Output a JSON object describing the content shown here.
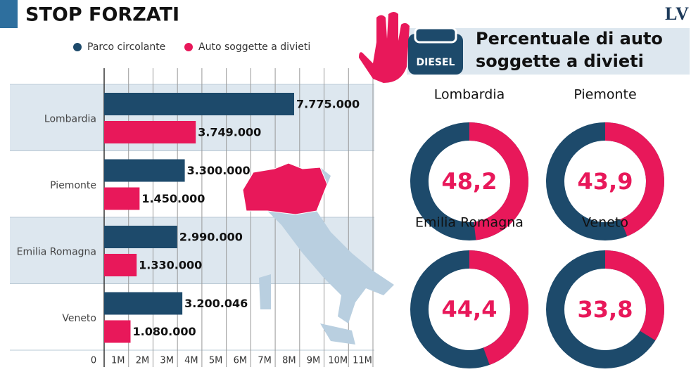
{
  "logo": "LV",
  "badge": "DIESEL",
  "chart_data": [
    {
      "type": "hbar",
      "title": "STOP FORZATI",
      "categories": [
        "Lombardia",
        "Piemonte",
        "Emilia Romagna",
        "Veneto"
      ],
      "series": [
        {
          "name": "Parco circolante",
          "color": "#1d4a6b",
          "values": [
            7775000,
            3300000,
            2990000,
            3200046
          ],
          "value_labels": [
            "7.775.000",
            "3.300.000",
            "2.990.000",
            "3.200.046"
          ]
        },
        {
          "name": "Auto soggette a divieti",
          "color": "#e8185a",
          "values": [
            3749000,
            1450000,
            1330000,
            1080000
          ],
          "value_labels": [
            "3.749.000",
            "1.450.000",
            "1.330.000",
            "1.080.000"
          ]
        }
      ],
      "xlim": [
        0,
        11000000
      ],
      "xticks": [
        0,
        {
          "value": 1000000,
          "label": "1M"
        },
        {
          "value": 2000000,
          "label": "2M"
        },
        {
          "value": 3000000,
          "label": "3M"
        },
        {
          "value": 4000000,
          "label": "4M"
        },
        {
          "value": 5000000,
          "label": "5M"
        },
        {
          "value": 6000000,
          "label": "6M"
        },
        {
          "value": 7000000,
          "label": "7M"
        },
        {
          "value": 8000000,
          "label": "8M"
        },
        {
          "value": 9000000,
          "label": "9M"
        },
        {
          "value": 10000000,
          "label": "10M"
        },
        {
          "value": 11000000,
          "label": "11M"
        }
      ],
      "grid": true
    },
    {
      "type": "donut",
      "title": [
        "Percentuale di auto",
        "soggette a divieti"
      ],
      "categories": [
        "Lombardia",
        "Piemonte",
        "Emilia Romagna",
        "Veneto"
      ],
      "values": [
        48.2,
        43.9,
        44.4,
        33.8
      ],
      "value_labels": [
        "48,2",
        "43,9",
        "44,4",
        "33,8"
      ],
      "color": "#e8185a",
      "rest_color": "#1d4a6b"
    }
  ]
}
